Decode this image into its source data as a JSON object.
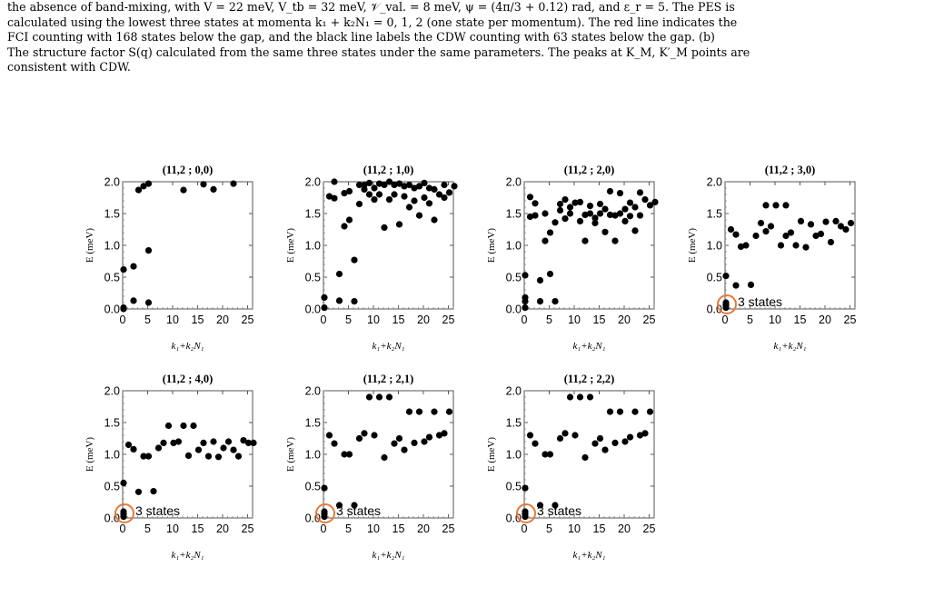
{
  "caption": {
    "lines": [
      "the absence of band-mixing, with V = 22 meV, V_tb = 32 meV, 𝒱_val. = 8 meV, ψ = (4π/3 + 0.12) rad, and ε_r = 5. The PES is",
      "calculated using the lowest three states at momenta k₁ + k₂N₁ = 0, 1, 2 (one state per momentum). The red line indicates the",
      "FCI counting with 168 states below the gap, and the black line labels the CDW counting with 63 states below the gap. (b)",
      "The structure factor S(q) calculated from the same three states under the same parameters. The peaks at K_M, K′_M points are",
      "consistent with CDW."
    ]
  },
  "chart_data": [
    {
      "type": "scatter",
      "title": "(11,2 ; 0,0)",
      "xlabel": "k₁+k₂N₁",
      "ylabel": "E (meV)",
      "xlim": [
        0,
        26
      ],
      "ylim": [
        0,
        2.0
      ],
      "xticks": [
        "0",
        "5",
        "10",
        "15",
        "20",
        "25"
      ],
      "yticks": [
        "0.0",
        "0.5",
        "1.0",
        "1.5",
        "2.0"
      ],
      "points": [
        [
          0,
          0.0
        ],
        [
          0,
          0.02
        ],
        [
          0,
          0.62
        ],
        [
          2,
          0.67
        ],
        [
          2,
          0.13
        ],
        [
          3,
          1.87
        ],
        [
          4,
          1.93
        ],
        [
          5,
          1.97
        ],
        [
          5,
          0.92
        ],
        [
          5,
          0.1
        ],
        [
          12,
          1.87
        ],
        [
          16,
          1.96
        ],
        [
          18,
          1.88
        ],
        [
          22,
          1.97
        ]
      ],
      "annotation": ""
    },
    {
      "type": "scatter",
      "title": "(11,2 ; 1,0)",
      "xlabel": "k₁+k₂N₁",
      "ylabel": "E (meV)",
      "xlim": [
        0,
        26
      ],
      "ylim": [
        0,
        2.0
      ],
      "xticks": [
        "0",
        "5",
        "10",
        "15",
        "20",
        "25"
      ],
      "yticks": [
        "0.0",
        "0.5",
        "1.0",
        "1.5",
        "2.0"
      ],
      "points": [
        [
          0,
          0.02
        ],
        [
          0,
          0.18
        ],
        [
          1,
          1.77
        ],
        [
          2,
          2.0
        ],
        [
          2,
          1.74
        ],
        [
          3,
          0.55
        ],
        [
          3,
          0.13
        ],
        [
          4,
          1.3
        ],
        [
          4,
          1.82
        ],
        [
          5,
          1.4
        ],
        [
          5,
          1.85
        ],
        [
          6,
          0.77
        ],
        [
          6,
          0.12
        ],
        [
          7,
          1.65
        ],
        [
          7,
          1.95
        ],
        [
          8,
          1.88
        ],
        [
          8,
          1.95
        ],
        [
          9,
          1.8
        ],
        [
          9,
          1.98
        ],
        [
          10,
          1.9
        ],
        [
          10,
          1.72
        ],
        [
          11,
          1.97
        ],
        [
          11,
          1.8
        ],
        [
          12,
          1.28
        ],
        [
          12,
          1.95
        ],
        [
          13,
          1.72
        ],
        [
          13,
          2.0
        ],
        [
          14,
          1.8
        ],
        [
          14,
          1.95
        ],
        [
          15,
          1.33
        ],
        [
          15,
          1.97
        ],
        [
          16,
          1.77
        ],
        [
          16,
          1.93
        ],
        [
          17,
          1.6
        ],
        [
          17,
          1.95
        ],
        [
          18,
          1.7
        ],
        [
          18,
          1.9
        ],
        [
          19,
          1.47
        ],
        [
          19,
          1.93
        ],
        [
          20,
          1.75
        ],
        [
          20,
          1.98
        ],
        [
          21,
          1.9
        ],
        [
          21,
          1.66
        ],
        [
          22,
          1.4
        ],
        [
          22,
          1.88
        ],
        [
          23,
          1.8
        ],
        [
          24,
          1.75
        ],
        [
          24,
          1.95
        ],
        [
          25,
          1.83
        ],
        [
          26,
          1.93
        ]
      ],
      "annotation": ""
    },
    {
      "type": "scatter",
      "title": "(11,2 ; 2,0)",
      "xlabel": "k₁+k₂N₁",
      "ylabel": "E (meV)",
      "xlim": [
        0,
        26
      ],
      "ylim": [
        0,
        2.0
      ],
      "xticks": [
        "0",
        "5",
        "10",
        "15",
        "20",
        "25"
      ],
      "yticks": [
        "0.0",
        "0.5",
        "1.0",
        "1.5",
        "2.0"
      ],
      "points": [
        [
          0,
          0.02
        ],
        [
          0,
          0.12
        ],
        [
          0,
          0.18
        ],
        [
          0,
          0.53
        ],
        [
          1,
          1.76
        ],
        [
          1,
          1.45
        ],
        [
          2,
          1.66
        ],
        [
          2,
          1.47
        ],
        [
          3,
          0.45
        ],
        [
          3,
          0.12
        ],
        [
          4,
          1.07
        ],
        [
          4,
          1.5
        ],
        [
          5,
          1.2
        ],
        [
          5,
          0.55
        ],
        [
          6,
          1.36
        ],
        [
          6,
          0.12
        ],
        [
          7,
          1.55
        ],
        [
          7,
          1.65
        ],
        [
          8,
          1.42
        ],
        [
          8,
          1.72
        ],
        [
          9,
          1.5
        ],
        [
          9,
          1.6
        ],
        [
          10,
          1.67
        ],
        [
          11,
          1.38
        ],
        [
          11,
          1.68
        ],
        [
          12,
          1.07
        ],
        [
          12,
          1.48
        ],
        [
          13,
          1.62
        ],
        [
          13,
          1.5
        ],
        [
          14,
          1.43
        ],
        [
          14,
          1.35
        ],
        [
          15,
          1.65
        ],
        [
          15,
          1.5
        ],
        [
          16,
          1.21
        ],
        [
          16,
          1.57
        ],
        [
          17,
          1.85
        ],
        [
          17,
          1.48
        ],
        [
          18,
          1.07
        ],
        [
          18,
          1.47
        ],
        [
          19,
          1.82
        ],
        [
          19,
          1.5
        ],
        [
          20,
          1.38
        ],
        [
          20,
          1.57
        ],
        [
          21,
          1.46
        ],
        [
          21,
          1.67
        ],
        [
          22,
          1.23
        ],
        [
          22,
          1.6
        ],
        [
          23,
          1.83
        ],
        [
          23,
          1.47
        ],
        [
          24,
          1.72
        ],
        [
          25,
          1.63
        ],
        [
          26,
          1.68
        ]
      ],
      "annotation": ""
    },
    {
      "type": "scatter",
      "title": "(11,2 ; 3,0)",
      "xlabel": "k₁+k₂N₁",
      "ylabel": "E (meV)",
      "xlim": [
        0,
        26
      ],
      "ylim": [
        0,
        2.0
      ],
      "xticks": [
        "0",
        "5",
        "10",
        "15",
        "20",
        "25"
      ],
      "yticks": [
        "0.0",
        "0.5",
        "1.0",
        "1.5",
        "2.0"
      ],
      "points": [
        [
          0,
          0.02
        ],
        [
          0,
          0.06
        ],
        [
          0,
          0.1
        ],
        [
          0,
          0.52
        ],
        [
          1,
          1.25
        ],
        [
          2,
          1.17
        ],
        [
          2,
          0.37
        ],
        [
          3,
          0.98
        ],
        [
          4,
          1.0
        ],
        [
          5,
          0.38
        ],
        [
          6,
          1.15
        ],
        [
          7,
          1.35
        ],
        [
          8,
          1.63
        ],
        [
          8,
          1.22
        ],
        [
          9,
          1.3
        ],
        [
          10,
          1.63
        ],
        [
          11,
          1.0
        ],
        [
          12,
          1.63
        ],
        [
          12,
          1.15
        ],
        [
          13,
          1.2
        ],
        [
          14,
          1.0
        ],
        [
          15,
          1.38
        ],
        [
          16,
          0.97
        ],
        [
          17,
          1.33
        ],
        [
          18,
          1.15
        ],
        [
          19,
          1.18
        ],
        [
          20,
          1.37
        ],
        [
          21,
          1.05
        ],
        [
          22,
          1.38
        ],
        [
          23,
          1.3
        ],
        [
          24,
          1.25
        ],
        [
          25,
          1.35
        ]
      ],
      "annotation": "3 states"
    },
    {
      "type": "scatter",
      "title": "(11,2 ; 4,0)",
      "xlabel": "k₁+k₂N₁",
      "ylabel": "E (meV)",
      "xlim": [
        0,
        26
      ],
      "ylim": [
        0,
        2.0
      ],
      "xticks": [
        "0",
        "5",
        "10",
        "15",
        "20",
        "25"
      ],
      "yticks": [
        "0.0",
        "0.5",
        "1.0",
        "1.5",
        "2.0"
      ],
      "points": [
        [
          0,
          0.02
        ],
        [
          0,
          0.06
        ],
        [
          0,
          0.1
        ],
        [
          0,
          0.55
        ],
        [
          1,
          1.15
        ],
        [
          2,
          1.08
        ],
        [
          3,
          0.41
        ],
        [
          4,
          0.97
        ],
        [
          5,
          0.97
        ],
        [
          6,
          0.42
        ],
        [
          7,
          1.1
        ],
        [
          8,
          1.18
        ],
        [
          9,
          1.45
        ],
        [
          10,
          1.18
        ],
        [
          11,
          1.2
        ],
        [
          12,
          1.45
        ],
        [
          13,
          0.98
        ],
        [
          14,
          1.45
        ],
        [
          15,
          1.07
        ],
        [
          16,
          1.18
        ],
        [
          17,
          0.97
        ],
        [
          18,
          1.2
        ],
        [
          19,
          0.96
        ],
        [
          20,
          1.1
        ],
        [
          21,
          1.2
        ],
        [
          22,
          1.07
        ],
        [
          23,
          0.97
        ],
        [
          24,
          1.22
        ],
        [
          25,
          1.18
        ],
        [
          26,
          1.18
        ]
      ],
      "annotation": "3 states"
    },
    {
      "type": "scatter",
      "title": "(11,2 ; 2,1)",
      "xlabel": "k₁+k₂N₁",
      "ylabel": "E (meV)",
      "xlim": [
        0,
        26
      ],
      "ylim": [
        0,
        2.0
      ],
      "xticks": [
        "0",
        "5",
        "10",
        "15",
        "20",
        "25"
      ],
      "yticks": [
        "0.0",
        "0.5",
        "1.0",
        "1.5",
        "2.0"
      ],
      "points": [
        [
          0,
          0.02
        ],
        [
          0,
          0.06
        ],
        [
          0,
          0.1
        ],
        [
          0,
          0.47
        ],
        [
          1,
          1.3
        ],
        [
          2,
          1.17
        ],
        [
          3,
          0.2
        ],
        [
          4,
          1.0
        ],
        [
          5,
          1.0
        ],
        [
          6,
          0.2
        ],
        [
          7,
          1.25
        ],
        [
          8,
          1.33
        ],
        [
          9,
          1.9
        ],
        [
          10,
          1.3
        ],
        [
          11,
          1.9
        ],
        [
          12,
          0.95
        ],
        [
          13,
          1.9
        ],
        [
          14,
          1.17
        ],
        [
          15,
          1.25
        ],
        [
          16,
          1.07
        ],
        [
          17,
          1.67
        ],
        [
          18,
          1.18
        ],
        [
          19,
          1.67
        ],
        [
          20,
          1.2
        ],
        [
          21,
          1.27
        ],
        [
          22,
          1.67
        ],
        [
          23,
          1.3
        ],
        [
          24,
          1.33
        ],
        [
          25,
          1.67
        ]
      ],
      "annotation": "3 states"
    },
    {
      "type": "scatter",
      "title": "(11,2 ; 2,2)",
      "xlabel": "k₁+k₂N₁",
      "ylabel": "E (meV)",
      "xlim": [
        0,
        26
      ],
      "ylim": [
        0,
        2.0
      ],
      "xticks": [
        "0",
        "5",
        "10",
        "15",
        "20",
        "25"
      ],
      "yticks": [
        "0.0",
        "0.5",
        "1.0",
        "1.5",
        "2.0"
      ],
      "points": [
        [
          0,
          0.02
        ],
        [
          0,
          0.06
        ],
        [
          0,
          0.1
        ],
        [
          0,
          0.47
        ],
        [
          1,
          1.3
        ],
        [
          2,
          1.17
        ],
        [
          3,
          0.2
        ],
        [
          4,
          1.0
        ],
        [
          5,
          1.0
        ],
        [
          6,
          0.2
        ],
        [
          7,
          1.25
        ],
        [
          8,
          1.33
        ],
        [
          9,
          1.9
        ],
        [
          10,
          1.3
        ],
        [
          11,
          1.9
        ],
        [
          12,
          0.95
        ],
        [
          13,
          1.9
        ],
        [
          14,
          1.17
        ],
        [
          15,
          1.25
        ],
        [
          16,
          1.07
        ],
        [
          17,
          1.67
        ],
        [
          18,
          1.18
        ],
        [
          19,
          1.67
        ],
        [
          20,
          1.2
        ],
        [
          21,
          1.27
        ],
        [
          22,
          1.67
        ],
        [
          23,
          1.3
        ],
        [
          24,
          1.33
        ],
        [
          25,
          1.67
        ]
      ],
      "annotation": "3 states"
    }
  ]
}
